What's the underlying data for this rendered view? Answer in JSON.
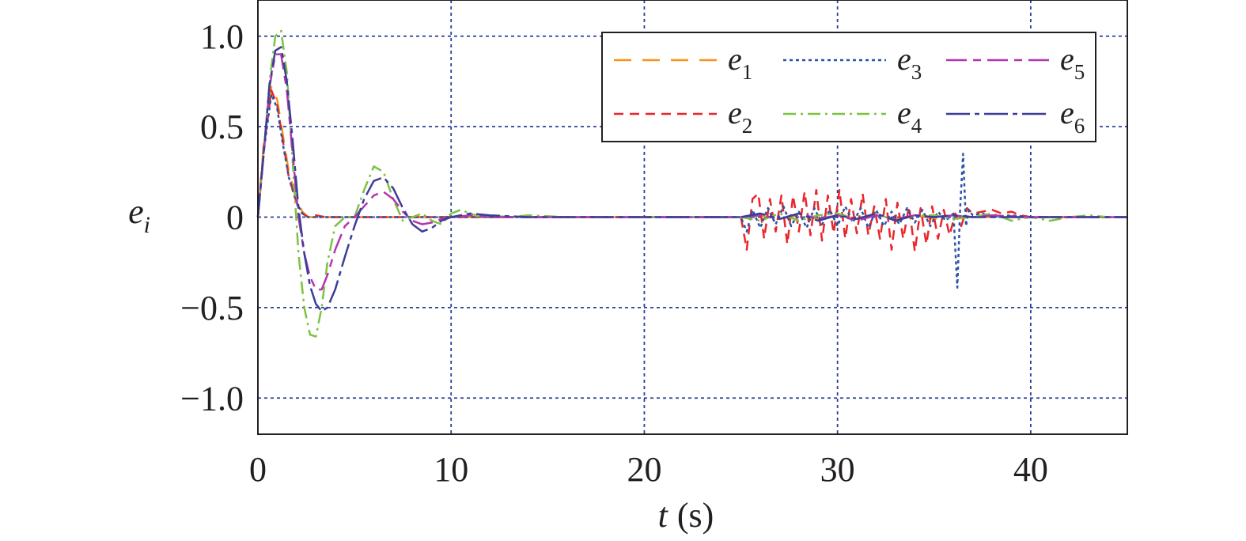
{
  "chart_data": {
    "type": "line",
    "xlabel": "t (s)",
    "xlabel_var": "t",
    "xlabel_unit": "(s)",
    "ylabel": "e_i",
    "ylabel_var": "e",
    "ylabel_sub": "i",
    "xlim": [
      0,
      45
    ],
    "ylim": [
      -1.2,
      1.2
    ],
    "xticks": [
      0,
      10,
      20,
      30,
      40
    ],
    "xtick_labels": [
      "0",
      "10",
      "20",
      "30",
      "40"
    ],
    "yticks": [
      1.0,
      0.5,
      0,
      -0.5,
      -1.0
    ],
    "ytick_labels": [
      "1.0",
      "0.5",
      "0",
      "−0.5",
      "−1.0"
    ],
    "grid": true,
    "legend_position": "top-right",
    "series": [
      {
        "name": "e1",
        "label_var": "e",
        "label_sub": "1",
        "color": "#f7941d",
        "dash": "22,14",
        "width": 2.5,
        "x": [
          0,
          0.3,
          0.7,
          1.0,
          1.3,
          1.6,
          2.0,
          2.3,
          2.6,
          3.0,
          3.5,
          4.0,
          5.0,
          6.0,
          7.0,
          8.0,
          9.0,
          10.0,
          11.0,
          12.0,
          14.0,
          16.0,
          20.0,
          25.0,
          26.0,
          27.0,
          28.0,
          29.0,
          30.0,
          31.0,
          32.0,
          33.0,
          34.0,
          35.0,
          36.0,
          36.5,
          37.0,
          38.0,
          39.0,
          40.0,
          41.0,
          42.0,
          45.0
        ],
        "y": [
          0,
          0.4,
          0.72,
          0.65,
          0.45,
          0.25,
          0.1,
          0.03,
          0.0,
          0.0,
          0.0,
          0.0,
          0.0,
          0.0,
          0.0,
          0.0,
          0.0,
          0.0,
          0.0,
          0.0,
          0.0,
          0.0,
          0.0,
          0.0,
          0.01,
          -0.01,
          0.01,
          -0.01,
          0.01,
          -0.01,
          0.01,
          -0.01,
          0.01,
          -0.01,
          0.01,
          0.0,
          0.0,
          0.0,
          0.0,
          0.0,
          0.0,
          0.0,
          0.0
        ]
      },
      {
        "name": "e2",
        "label_var": "e",
        "label_sub": "2",
        "color": "#e8262b",
        "dash": "12,8",
        "width": 2.5,
        "x": [
          0,
          0.3,
          0.7,
          1.0,
          1.3,
          1.6,
          2.0,
          2.3,
          2.6,
          3.0,
          3.5,
          4.0,
          5.0,
          6.0,
          8.0,
          10.0,
          14.0,
          20.0,
          25.0,
          25.3,
          25.6,
          25.9,
          26.2,
          26.5,
          26.8,
          27.1,
          27.4,
          27.7,
          28.0,
          28.3,
          28.6,
          28.9,
          29.2,
          29.5,
          29.8,
          30.1,
          30.4,
          30.7,
          31.0,
          31.3,
          31.6,
          31.9,
          32.2,
          32.5,
          32.8,
          33.1,
          33.4,
          33.7,
          34.0,
          34.3,
          34.6,
          34.9,
          35.2,
          35.5,
          35.8,
          36.1,
          36.4,
          36.7,
          37.0,
          37.5,
          38.0,
          38.5,
          39.0,
          39.5,
          40.0,
          41.0,
          42.0,
          45.0
        ],
        "y": [
          0,
          0.38,
          0.7,
          0.62,
          0.42,
          0.22,
          0.08,
          0.02,
          0.0,
          0.01,
          0.0,
          0.0,
          0.0,
          0.0,
          0.0,
          0.0,
          0.0,
          0.0,
          0.0,
          -0.18,
          0.1,
          0.13,
          -0.12,
          0.1,
          -0.08,
          0.12,
          -0.15,
          0.12,
          -0.08,
          0.14,
          -0.1,
          0.15,
          -0.13,
          0.12,
          -0.09,
          0.15,
          -0.12,
          0.1,
          -0.09,
          0.13,
          -0.1,
          0.06,
          -0.12,
          0.1,
          -0.18,
          0.08,
          -0.12,
          0.06,
          -0.19,
          0.05,
          -0.15,
          0.06,
          -0.12,
          0.04,
          -0.1,
          0.02,
          -0.05,
          0.05,
          0.02,
          0.03,
          0.04,
          0.02,
          0.03,
          0.01,
          0.0,
          0.0,
          0.0,
          0.0
        ]
      },
      {
        "name": "e3",
        "label_var": "e",
        "label_sub": "3",
        "color": "#2b55a3",
        "dash": "4,4",
        "width": 2.5,
        "x": [
          0,
          0.3,
          0.7,
          1.0,
          1.3,
          1.6,
          2.0,
          2.3,
          2.6,
          3.0,
          4.0,
          6.0,
          8.0,
          10.0,
          14.0,
          20.0,
          25.0,
          25.3,
          25.6,
          26.0,
          26.4,
          26.8,
          27.2,
          27.6,
          28.0,
          28.4,
          28.8,
          29.2,
          29.6,
          30.0,
          30.4,
          30.8,
          31.2,
          31.6,
          32.0,
          32.4,
          32.8,
          33.2,
          33.6,
          34.0,
          34.4,
          34.8,
          35.2,
          35.6,
          36.0,
          36.2,
          36.35,
          36.5,
          36.65,
          36.8,
          37.0,
          37.5,
          38.0,
          39.0,
          40.0,
          42.0,
          45.0
        ],
        "y": [
          0,
          0.36,
          0.68,
          0.6,
          0.4,
          0.22,
          0.08,
          0.02,
          0.0,
          0.0,
          0.0,
          0.0,
          0.0,
          0.0,
          0.0,
          0.0,
          0.0,
          -0.08,
          0.04,
          -0.06,
          0.05,
          -0.04,
          0.06,
          -0.05,
          0.03,
          -0.06,
          0.05,
          -0.04,
          0.04,
          -0.05,
          0.06,
          -0.03,
          0.05,
          -0.06,
          0.04,
          -0.05,
          0.03,
          -0.04,
          0.05,
          -0.03,
          0.04,
          -0.05,
          0.03,
          -0.02,
          0.02,
          -0.39,
          0.05,
          0.35,
          -0.05,
          0.04,
          0.01,
          0.02,
          0.0,
          0.01,
          0.0,
          0.0,
          0.0
        ]
      },
      {
        "name": "e4",
        "label_var": "e",
        "label_sub": "4",
        "color": "#7dc242",
        "dash": "16,6,3,6",
        "width": 2.5,
        "x": [
          0,
          0.3,
          0.6,
          0.9,
          1.2,
          1.5,
          1.8,
          2.1,
          2.4,
          2.7,
          3.0,
          3.3,
          3.6,
          4.0,
          4.5,
          5.0,
          5.5,
          6.0,
          6.5,
          7.0,
          7.5,
          8.0,
          8.5,
          9.0,
          9.5,
          10.0,
          10.5,
          11.0,
          11.5,
          12.0,
          13.0,
          14.0,
          16.0,
          20.0,
          25.0,
          26.0,
          27.0,
          28.0,
          29.0,
          30.0,
          31.0,
          32.0,
          33.0,
          34.0,
          35.0,
          36.0,
          37.0,
          38.0,
          39.0,
          40.0,
          41.0,
          42.0,
          43.0,
          44.0,
          45.0
        ],
        "y": [
          0,
          0.35,
          0.75,
          1.0,
          1.03,
          0.8,
          0.3,
          -0.2,
          -0.5,
          -0.65,
          -0.66,
          -0.5,
          -0.25,
          -0.05,
          0.0,
          0.0,
          0.15,
          0.28,
          0.25,
          0.1,
          -0.02,
          0.0,
          0.02,
          -0.02,
          -0.04,
          0.02,
          0.04,
          0.02,
          0.0,
          0.01,
          0.0,
          0.01,
          0.0,
          0.0,
          0.0,
          -0.02,
          0.02,
          -0.02,
          0.01,
          0.02,
          -0.01,
          0.02,
          -0.02,
          0.01,
          0.01,
          -0.01,
          0.0,
          0.02,
          -0.02,
          0.0,
          -0.02,
          0.0,
          0.01,
          0.0,
          0.0
        ]
      },
      {
        "name": "e5",
        "label_var": "e",
        "label_sub": "5",
        "color": "#b235b2",
        "dash": "26,8,10,8",
        "width": 2.5,
        "x": [
          0,
          0.3,
          0.6,
          0.9,
          1.2,
          1.5,
          1.8,
          2.1,
          2.4,
          2.7,
          3.0,
          3.3,
          3.6,
          4.0,
          4.5,
          5.0,
          5.5,
          6.0,
          6.5,
          7.0,
          7.5,
          8.0,
          8.5,
          9.0,
          9.5,
          10.0,
          11.0,
          12.0,
          14.0,
          20.0,
          25.0,
          26.0,
          27.0,
          28.0,
          29.0,
          30.0,
          31.0,
          32.0,
          33.0,
          34.0,
          35.0,
          36.0,
          37.0,
          38.0,
          40.0,
          42.0,
          45.0
        ],
        "y": [
          0,
          0.35,
          0.72,
          0.9,
          0.9,
          0.7,
          0.35,
          0.0,
          -0.2,
          -0.33,
          -0.4,
          -0.4,
          -0.32,
          -0.18,
          -0.05,
          0.0,
          0.06,
          0.12,
          0.14,
          0.1,
          0.03,
          -0.02,
          -0.04,
          -0.03,
          -0.01,
          0.0,
          0.01,
          0.0,
          0.0,
          0.0,
          0.0,
          0.01,
          -0.01,
          0.02,
          -0.01,
          0.01,
          -0.02,
          0.01,
          -0.01,
          0.01,
          0.0,
          0.01,
          0.0,
          0.01,
          0.0,
          0.0,
          0.0
        ]
      },
      {
        "name": "e6",
        "label_var": "e",
        "label_sub": "6",
        "color": "#3c3d98",
        "dash": "30,6,6,6",
        "width": 2.5,
        "x": [
          0,
          0.3,
          0.6,
          0.9,
          1.2,
          1.5,
          1.8,
          2.1,
          2.4,
          2.7,
          3.0,
          3.3,
          3.6,
          4.0,
          4.5,
          5.0,
          5.5,
          6.0,
          6.5,
          7.0,
          7.5,
          8.0,
          8.5,
          9.0,
          9.5,
          10.0,
          11.0,
          12.0,
          14.0,
          20.0,
          25.0,
          26.0,
          27.0,
          28.0,
          29.0,
          30.0,
          31.0,
          32.0,
          33.0,
          34.0,
          35.0,
          36.0,
          37.0,
          38.0,
          40.0,
          42.0,
          45.0
        ],
        "y": [
          0,
          0.35,
          0.73,
          0.92,
          0.94,
          0.75,
          0.42,
          0.05,
          -0.2,
          -0.38,
          -0.48,
          -0.52,
          -0.5,
          -0.4,
          -0.22,
          -0.05,
          0.1,
          0.2,
          0.22,
          0.16,
          0.05,
          -0.04,
          -0.08,
          -0.06,
          -0.02,
          0.0,
          0.02,
          0.01,
          0.0,
          0.0,
          0.0,
          0.02,
          -0.01,
          0.02,
          -0.02,
          0.01,
          -0.01,
          0.02,
          -0.02,
          0.01,
          0.0,
          0.01,
          0.0,
          0.0,
          0.0,
          0.0,
          0.0
        ]
      }
    ]
  }
}
